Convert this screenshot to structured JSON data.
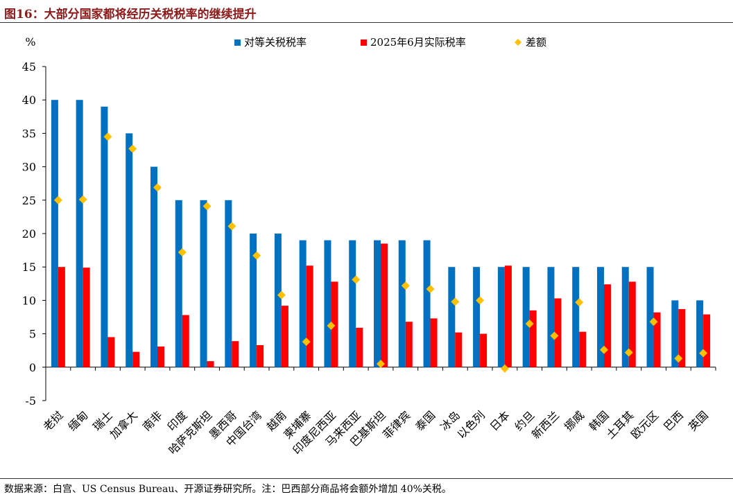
{
  "title": "图16：大部分国家都将经历关税税率的继续提升",
  "footer": "数据来源：白宫、US Census Bureau、开源证券研究所。注：巴西部分商品将会额外增加 40%关税。",
  "chart_data": {
    "type": "bar",
    "ylabel": "%",
    "ylim": [
      -5,
      45
    ],
    "yticks": [
      -5,
      0,
      5,
      10,
      15,
      20,
      25,
      30,
      35,
      40,
      45
    ],
    "legend_position": "top",
    "categories": [
      "老挝",
      "缅甸",
      "瑞士",
      "加拿大",
      "南非",
      "印度",
      "哈萨克斯坦",
      "墨西哥",
      "中国台湾",
      "越南",
      "柬埔寨",
      "印度尼西亚",
      "马来西亚",
      "巴基斯坦",
      "菲律宾",
      "泰国",
      "冰岛",
      "以色列",
      "日本",
      "约旦",
      "新西兰",
      "挪威",
      "韩国",
      "土耳其",
      "欧元区",
      "巴西",
      "英国"
    ],
    "series": [
      {
        "name": "对等关税税率",
        "type": "bar",
        "color": "#0070c0",
        "values": [
          40,
          40,
          39,
          35,
          30,
          25,
          25,
          25,
          20,
          20,
          19,
          19,
          19,
          19,
          19,
          19,
          15,
          15,
          15,
          15,
          15,
          15,
          15,
          15,
          15,
          10,
          10
        ]
      },
      {
        "name": "2025年6月实际税率",
        "type": "bar",
        "color": "#ff0000",
        "values": [
          15.0,
          14.9,
          4.5,
          2.3,
          3.1,
          7.8,
          0.9,
          3.9,
          3.3,
          9.2,
          15.2,
          12.8,
          5.9,
          18.5,
          6.8,
          7.3,
          5.2,
          5.0,
          15.2,
          8.5,
          10.3,
          5.3,
          12.4,
          12.8,
          8.2,
          8.7,
          7.9
        ]
      },
      {
        "name": "差额",
        "type": "scatter",
        "color": "#ffc000",
        "values": [
          25.0,
          25.1,
          34.5,
          32.7,
          26.9,
          17.2,
          24.1,
          21.1,
          16.7,
          10.8,
          3.8,
          6.2,
          13.1,
          0.5,
          12.2,
          11.7,
          9.8,
          10.0,
          -0.2,
          6.5,
          4.7,
          9.7,
          2.6,
          2.2,
          6.8,
          1.3,
          2.1
        ]
      }
    ]
  }
}
